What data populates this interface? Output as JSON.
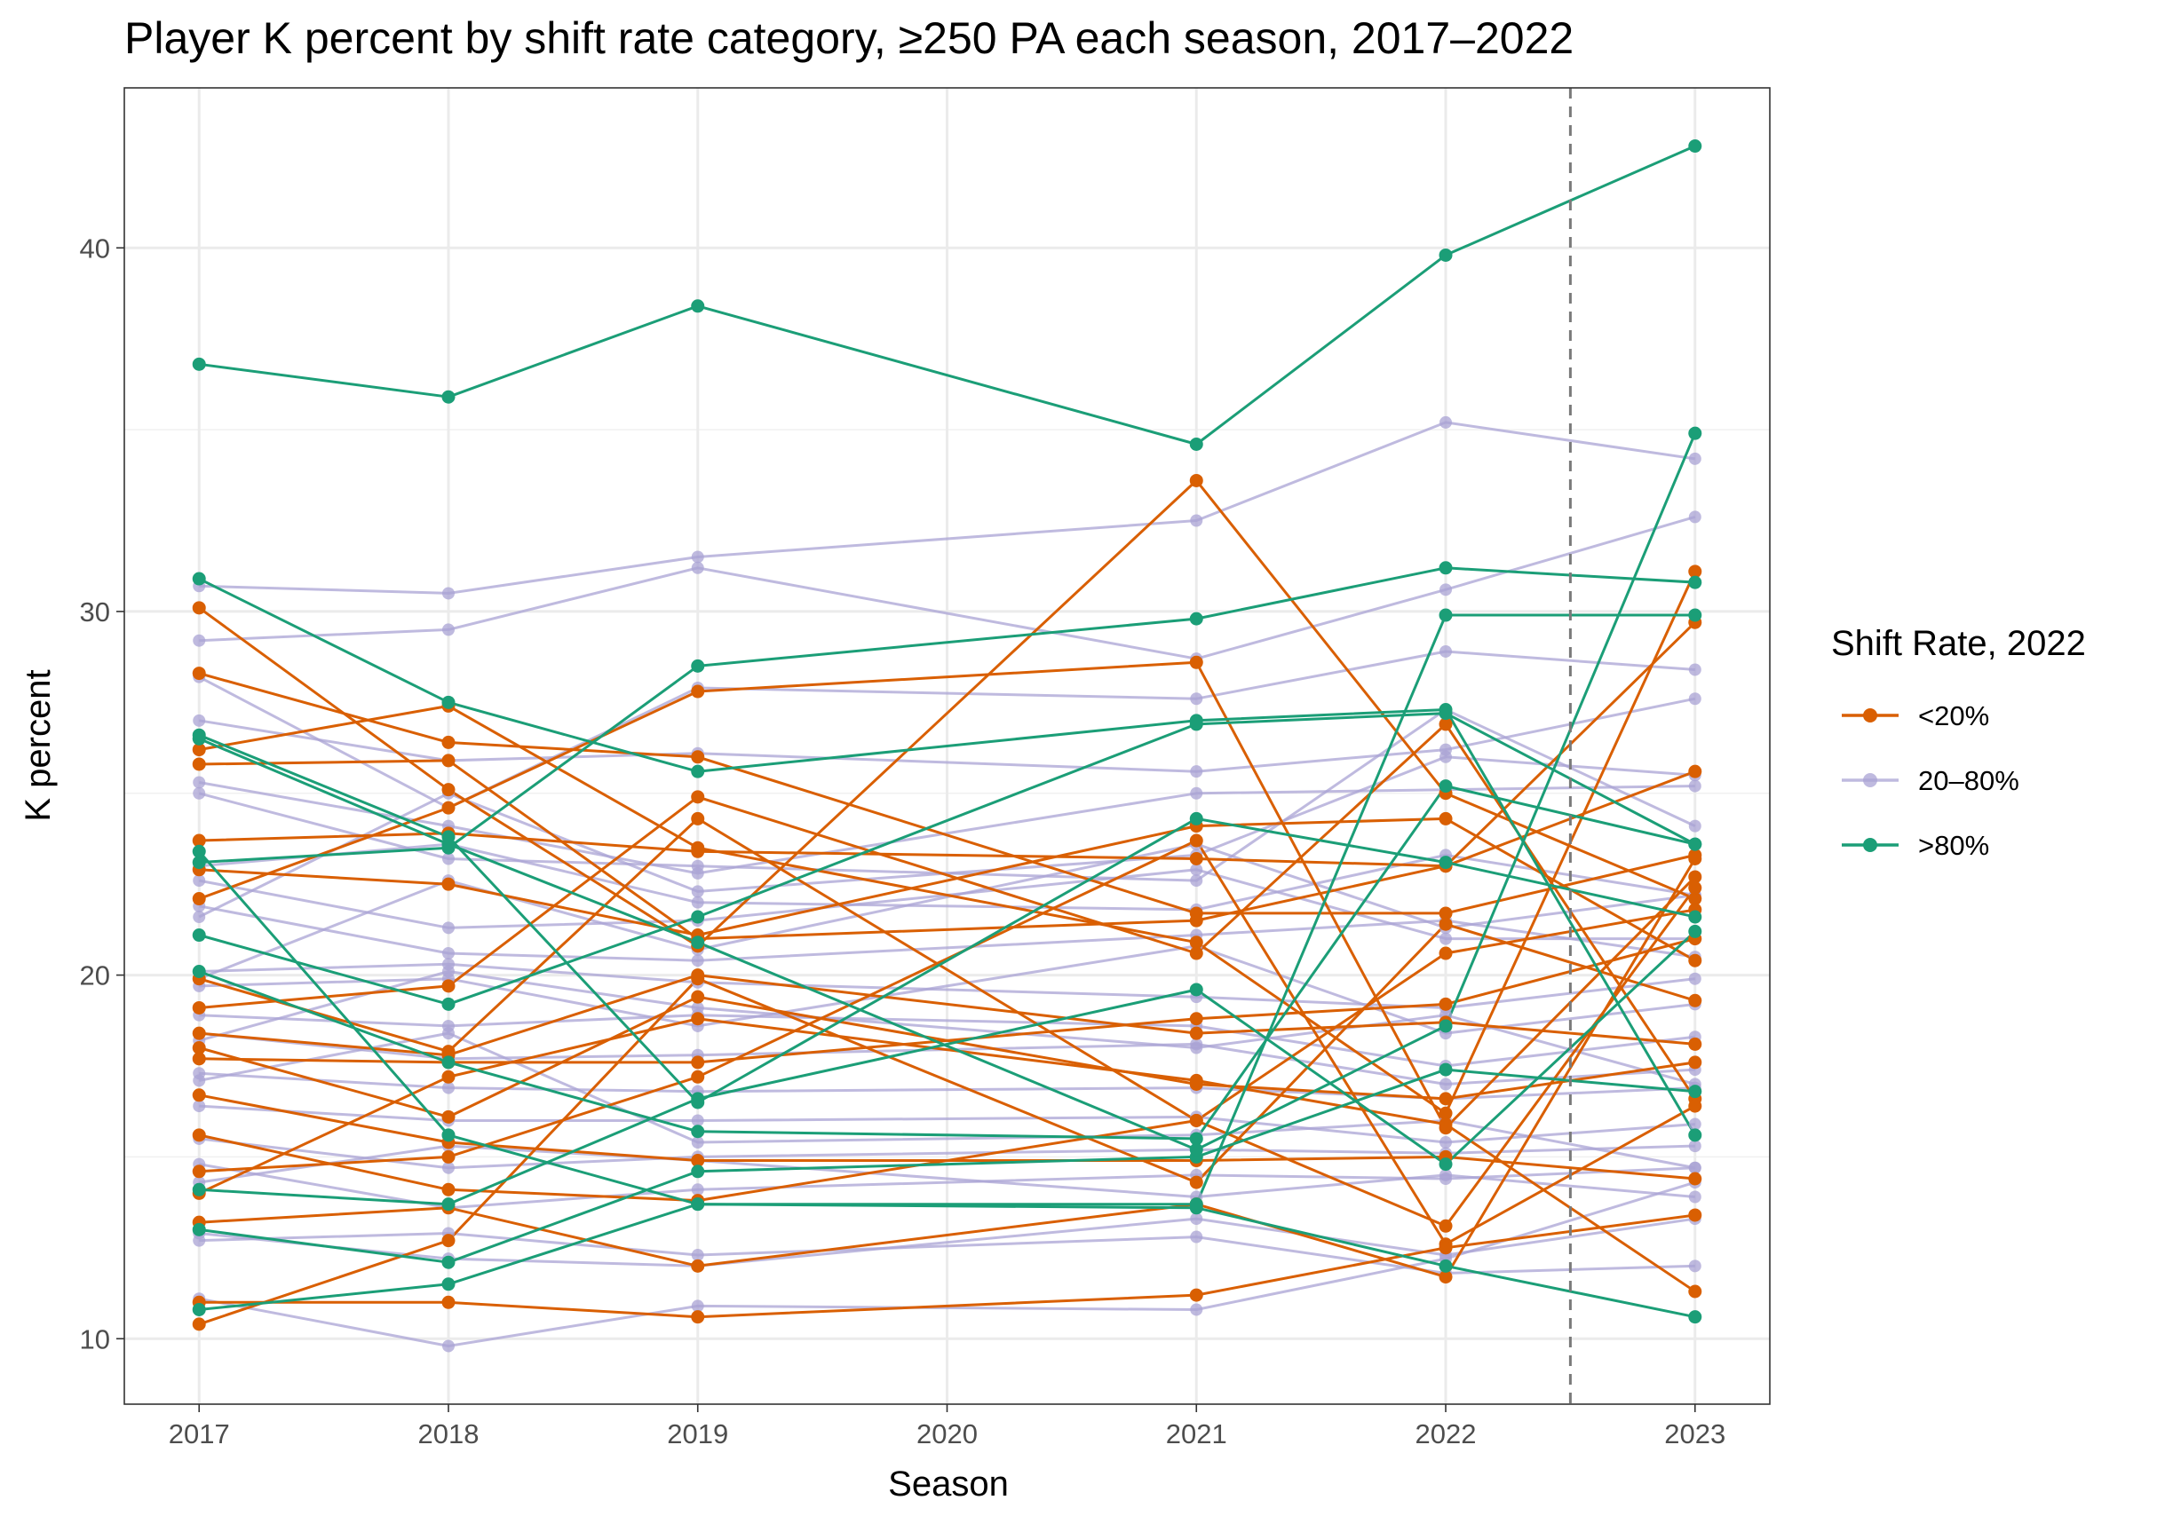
{
  "chart_data": {
    "type": "line",
    "title": "Player K percent by shift rate category, ≥250 PA each season, 2017–2022",
    "xlabel": "Season",
    "ylabel": "K percent",
    "x_ticks": [
      "2017",
      "2018",
      "2019",
      "2020",
      "2021",
      "2022",
      "2023"
    ],
    "y_ticks": [
      "10",
      "20",
      "30",
      "40"
    ],
    "xlim": [
      2016.7,
      2023.3
    ],
    "ylim": [
      8.2,
      44.4
    ],
    "y_tick_values": [
      10,
      20,
      30,
      40
    ],
    "reference_line_x": 2022.5,
    "grid": true,
    "legend": {
      "title": "Shift Rate, 2022",
      "position": "right",
      "items": [
        {
          "label": "<20%",
          "color": "#D95F02"
        },
        {
          "label": "20–80%",
          "color": "#A9A3D4"
        },
        {
          "label": ">80%",
          "color": "#1B9E77"
        }
      ]
    },
    "series": [
      {
        "group": ">80%",
        "x": [
          2017,
          2018,
          2019,
          2021,
          2022,
          2023
        ],
        "y": [
          36.8,
          35.9,
          38.4,
          34.6,
          39.8,
          42.8
        ]
      },
      {
        "group": ">80%",
        "x": [
          2017,
          2018,
          2019,
          2021,
          2022,
          2023
        ],
        "y": [
          30.9,
          27.5,
          25.6,
          27.0,
          27.3,
          15.6
        ]
      },
      {
        "group": ">80%",
        "x": [
          2017,
          2018,
          2019,
          2021,
          2022,
          2023
        ],
        "y": [
          26.6,
          23.8,
          16.5,
          24.3,
          23.1,
          21.6
        ]
      },
      {
        "group": ">80%",
        "x": [
          2017,
          2018,
          2019,
          2021,
          2022,
          2023
        ],
        "y": [
          23.1,
          23.5,
          28.5,
          29.8,
          31.2,
          30.8
        ]
      },
      {
        "group": ">80%",
        "x": [
          2017,
          2018,
          2019,
          2021,
          2022,
          2023
        ],
        "y": [
          21.1,
          19.2,
          21.6,
          26.9,
          27.2,
          23.6
        ]
      },
      {
        "group": ">80%",
        "x": [
          2017,
          2018,
          2019,
          2021,
          2022,
          2023
        ],
        "y": [
          20.1,
          17.6,
          15.7,
          15.5,
          25.2,
          23.6
        ]
      },
      {
        "group": ">80%",
        "x": [
          2017,
          2018,
          2019,
          2021,
          2022,
          2023
        ],
        "y": [
          14.1,
          13.7,
          16.6,
          19.6,
          14.8,
          21.2
        ]
      },
      {
        "group": ">80%",
        "x": [
          2017,
          2018,
          2019,
          2021,
          2022,
          2023
        ],
        "y": [
          13.0,
          12.1,
          14.6,
          15.0,
          17.4,
          16.8
        ]
      },
      {
        "group": ">80%",
        "x": [
          2017,
          2018,
          2019,
          2021,
          2022,
          2023
        ],
        "y": [
          10.8,
          11.5,
          13.7,
          13.6,
          12.0,
          10.6
        ]
      },
      {
        "group": ">80%",
        "x": [
          2017,
          2018,
          2019,
          2021,
          2022,
          2023
        ],
        "y": [
          23.4,
          15.6,
          13.7,
          13.7,
          29.9,
          29.9
        ]
      },
      {
        "group": ">80%",
        "x": [
          2017,
          2018,
          2019,
          2021,
          2022,
          2023
        ],
        "y": [
          26.5,
          23.6,
          20.9,
          15.2,
          18.6,
          34.9
        ]
      },
      {
        "group": "<20%",
        "x": [
          2017,
          2018,
          2019,
          2021,
          2022,
          2023
        ],
        "y": [
          30.1,
          25.1,
          20.8,
          33.6,
          25.0,
          22.1
        ]
      },
      {
        "group": "<20%",
        "x": [
          2017,
          2018,
          2019,
          2021,
          2022,
          2023
        ],
        "y": [
          28.3,
          26.4,
          26.0,
          21.7,
          21.7,
          23.3
        ]
      },
      {
        "group": "<20%",
        "x": [
          2017,
          2018,
          2019,
          2021,
          2022,
          2023
        ],
        "y": [
          26.2,
          27.4,
          23.5,
          20.9,
          16.2,
          31.1
        ]
      },
      {
        "group": "<20%",
        "x": [
          2017,
          2018,
          2019,
          2021,
          2022,
          2023
        ],
        "y": [
          25.8,
          25.9,
          21.0,
          21.5,
          23.0,
          29.7
        ]
      },
      {
        "group": "<20%",
        "x": [
          2017,
          2018,
          2019,
          2021,
          2022,
          2023
        ],
        "y": [
          23.7,
          23.9,
          23.4,
          23.2,
          23.0,
          25.6
        ]
      },
      {
        "group": "<20%",
        "x": [
          2017,
          2018,
          2019,
          2021,
          2022,
          2023
        ],
        "y": [
          22.9,
          22.5,
          21.1,
          24.1,
          24.3,
          20.4
        ]
      },
      {
        "group": "<20%",
        "x": [
          2017,
          2018,
          2019,
          2021,
          2022,
          2023
        ],
        "y": [
          22.1,
          24.6,
          27.8,
          28.6,
          15.8,
          22.7
        ]
      },
      {
        "group": "<20%",
        "x": [
          2017,
          2018,
          2019,
          2021,
          2022,
          2023
        ],
        "y": [
          19.9,
          17.9,
          24.3,
          16.0,
          20.6,
          21.8
        ]
      },
      {
        "group": "<20%",
        "x": [
          2017,
          2018,
          2019,
          2021,
          2022,
          2023
        ],
        "y": [
          19.1,
          19.7,
          24.9,
          20.6,
          26.9,
          16.6
        ]
      },
      {
        "group": "<20%",
        "x": [
          2017,
          2018,
          2019,
          2021,
          2022,
          2023
        ],
        "y": [
          18.4,
          17.8,
          20.0,
          18.4,
          18.7,
          18.1
        ]
      },
      {
        "group": "<20%",
        "x": [
          2017,
          2018,
          2019,
          2021,
          2022,
          2023
        ],
        "y": [
          18.0,
          16.1,
          19.4,
          17.0,
          16.6,
          17.6
        ]
      },
      {
        "group": "<20%",
        "x": [
          2017,
          2018,
          2019,
          2021,
          2022,
          2023
        ],
        "y": [
          17.7,
          17.6,
          17.6,
          18.8,
          19.2,
          21.0
        ]
      },
      {
        "group": "<20%",
        "x": [
          2017,
          2018,
          2019,
          2021,
          2022,
          2023
        ],
        "y": [
          16.7,
          15.4,
          14.9,
          14.9,
          15.0,
          14.4
        ]
      },
      {
        "group": "<20%",
        "x": [
          2017,
          2018,
          2019,
          2021,
          2022,
          2023
        ],
        "y": [
          15.6,
          14.1,
          13.8,
          16.0,
          13.1,
          22.4
        ]
      },
      {
        "group": "<20%",
        "x": [
          2017,
          2018,
          2019,
          2021,
          2022,
          2023
        ],
        "y": [
          14.6,
          15.0,
          17.2,
          23.7,
          12.6,
          16.4
        ]
      },
      {
        "group": "<20%",
        "x": [
          2017,
          2018,
          2019,
          2021,
          2022,
          2023
        ],
        "y": [
          13.2,
          13.6,
          12.0,
          13.7,
          11.7,
          23.2
        ]
      },
      {
        "group": "<20%",
        "x": [
          2017,
          2018,
          2019,
          2021,
          2022,
          2023
        ],
        "y": [
          11.0,
          11.0,
          10.6,
          11.2,
          12.5,
          13.4
        ]
      },
      {
        "group": "<20%",
        "x": [
          2017,
          2018,
          2019,
          2021,
          2022,
          2023
        ],
        "y": [
          10.4,
          12.7,
          19.9,
          14.3,
          21.4,
          19.3
        ]
      },
      {
        "group": "<20%",
        "x": [
          2017,
          2018,
          2019,
          2021,
          2022,
          2023
        ],
        "y": [
          14.0,
          17.2,
          18.8,
          17.1,
          15.9,
          11.3
        ]
      },
      {
        "group": "20–80%",
        "x": [
          2017,
          2018,
          2019,
          2021,
          2022,
          2023
        ],
        "y": [
          30.7,
          30.5,
          31.5,
          32.5,
          35.2,
          34.2
        ]
      },
      {
        "group": "20–80%",
        "x": [
          2017,
          2018,
          2019,
          2021,
          2022,
          2023
        ],
        "y": [
          29.2,
          29.5,
          31.2,
          28.7,
          30.6,
          32.6
        ]
      },
      {
        "group": "20–80%",
        "x": [
          2017,
          2018,
          2019,
          2021,
          2022,
          2023
        ],
        "y": [
          28.2,
          24.6,
          27.9,
          27.6,
          28.9,
          28.4
        ]
      },
      {
        "group": "20–80%",
        "x": [
          2017,
          2018,
          2019,
          2021,
          2022,
          2023
        ],
        "y": [
          27.0,
          25.9,
          26.1,
          25.6,
          26.2,
          27.6
        ]
      },
      {
        "group": "20–80%",
        "x": [
          2017,
          2018,
          2019,
          2021,
          2022,
          2023
        ],
        "y": [
          25.3,
          24.1,
          22.8,
          25.0,
          25.1,
          25.2
        ]
      },
      {
        "group": "20–80%",
        "x": [
          2017,
          2018,
          2019,
          2021,
          2022,
          2023
        ],
        "y": [
          25.0,
          23.2,
          23.0,
          22.6,
          27.3,
          24.1
        ]
      },
      {
        "group": "20–80%",
        "x": [
          2017,
          2018,
          2019,
          2021,
          2022,
          2023
        ],
        "y": [
          23.0,
          23.6,
          22.0,
          21.8,
          23.3,
          22.2
        ]
      },
      {
        "group": "20–80%",
        "x": [
          2017,
          2018,
          2019,
          2021,
          2022,
          2023
        ],
        "y": [
          22.6,
          21.3,
          21.5,
          22.9,
          21.0,
          21.0
        ]
      },
      {
        "group": "20–80%",
        "x": [
          2017,
          2018,
          2019,
          2021,
          2022,
          2023
        ],
        "y": [
          21.9,
          20.6,
          20.4,
          21.1,
          21.5,
          20.5
        ]
      },
      {
        "group": "20–80%",
        "x": [
          2017,
          2018,
          2019,
          2021,
          2022,
          2023
        ],
        "y": [
          20.1,
          20.3,
          19.8,
          19.4,
          19.1,
          19.9
        ]
      },
      {
        "group": "20–80%",
        "x": [
          2017,
          2018,
          2019,
          2021,
          2022,
          2023
        ],
        "y": [
          19.7,
          19.9,
          18.6,
          20.8,
          18.4,
          19.2
        ]
      },
      {
        "group": "20–80%",
        "x": [
          2017,
          2018,
          2019,
          2021,
          2022,
          2023
        ],
        "y": [
          18.9,
          18.6,
          18.9,
          18.6,
          17.5,
          18.3
        ]
      },
      {
        "group": "20–80%",
        "x": [
          2017,
          2018,
          2019,
          2021,
          2022,
          2023
        ],
        "y": [
          18.4,
          17.7,
          17.8,
          18.1,
          17.0,
          17.4
        ]
      },
      {
        "group": "20–80%",
        "x": [
          2017,
          2018,
          2019,
          2021,
          2022,
          2023
        ],
        "y": [
          17.3,
          16.9,
          16.8,
          16.9,
          16.6,
          16.9
        ]
      },
      {
        "group": "20–80%",
        "x": [
          2017,
          2018,
          2019,
          2021,
          2022,
          2023
        ],
        "y": [
          16.4,
          16.0,
          16.0,
          16.1,
          15.4,
          15.9
        ]
      },
      {
        "group": "20–80%",
        "x": [
          2017,
          2018,
          2019,
          2021,
          2022,
          2023
        ],
        "y": [
          15.5,
          14.7,
          15.0,
          15.2,
          15.1,
          15.3
        ]
      },
      {
        "group": "20–80%",
        "x": [
          2017,
          2018,
          2019,
          2021,
          2022,
          2023
        ],
        "y": [
          14.8,
          13.6,
          14.1,
          14.5,
          14.4,
          14.7
        ]
      },
      {
        "group": "20–80%",
        "x": [
          2017,
          2018,
          2019,
          2021,
          2022,
          2023
        ],
        "y": [
          14.3,
          15.3,
          14.9,
          13.9,
          14.5,
          13.9
        ]
      },
      {
        "group": "20–80%",
        "x": [
          2017,
          2018,
          2019,
          2021,
          2022,
          2023
        ],
        "y": [
          12.9,
          12.2,
          12.0,
          13.3,
          12.3,
          13.3
        ]
      },
      {
        "group": "20–80%",
        "x": [
          2017,
          2018,
          2019,
          2021,
          2022,
          2023
        ],
        "y": [
          12.7,
          12.9,
          12.3,
          12.8,
          11.8,
          12.0
        ]
      },
      {
        "group": "20–80%",
        "x": [
          2017,
          2018,
          2019,
          2021,
          2022,
          2023
        ],
        "y": [
          11.1,
          9.8,
          10.9,
          10.8,
          12.2,
          14.3
        ]
      },
      {
        "group": "20–80%",
        "x": [
          2017,
          2018,
          2019,
          2021,
          2022,
          2023
        ],
        "y": [
          21.6,
          25.0,
          22.3,
          23.3,
          26.0,
          25.5
        ]
      },
      {
        "group": "20–80%",
        "x": [
          2017,
          2018,
          2019,
          2021,
          2022,
          2023
        ],
        "y": [
          19.9,
          22.6,
          20.7,
          23.6,
          21.3,
          22.2
        ]
      },
      {
        "group": "20–80%",
        "x": [
          2017,
          2018,
          2019,
          2021,
          2022,
          2023
        ],
        "y": [
          18.2,
          20.1,
          19.1,
          18.0,
          18.9,
          17.0
        ]
      },
      {
        "group": "20–80%",
        "x": [
          2017,
          2018,
          2019,
          2021,
          2022,
          2023
        ],
        "y": [
          17.1,
          18.4,
          15.4,
          15.6,
          16.0,
          14.7
        ]
      }
    ]
  }
}
